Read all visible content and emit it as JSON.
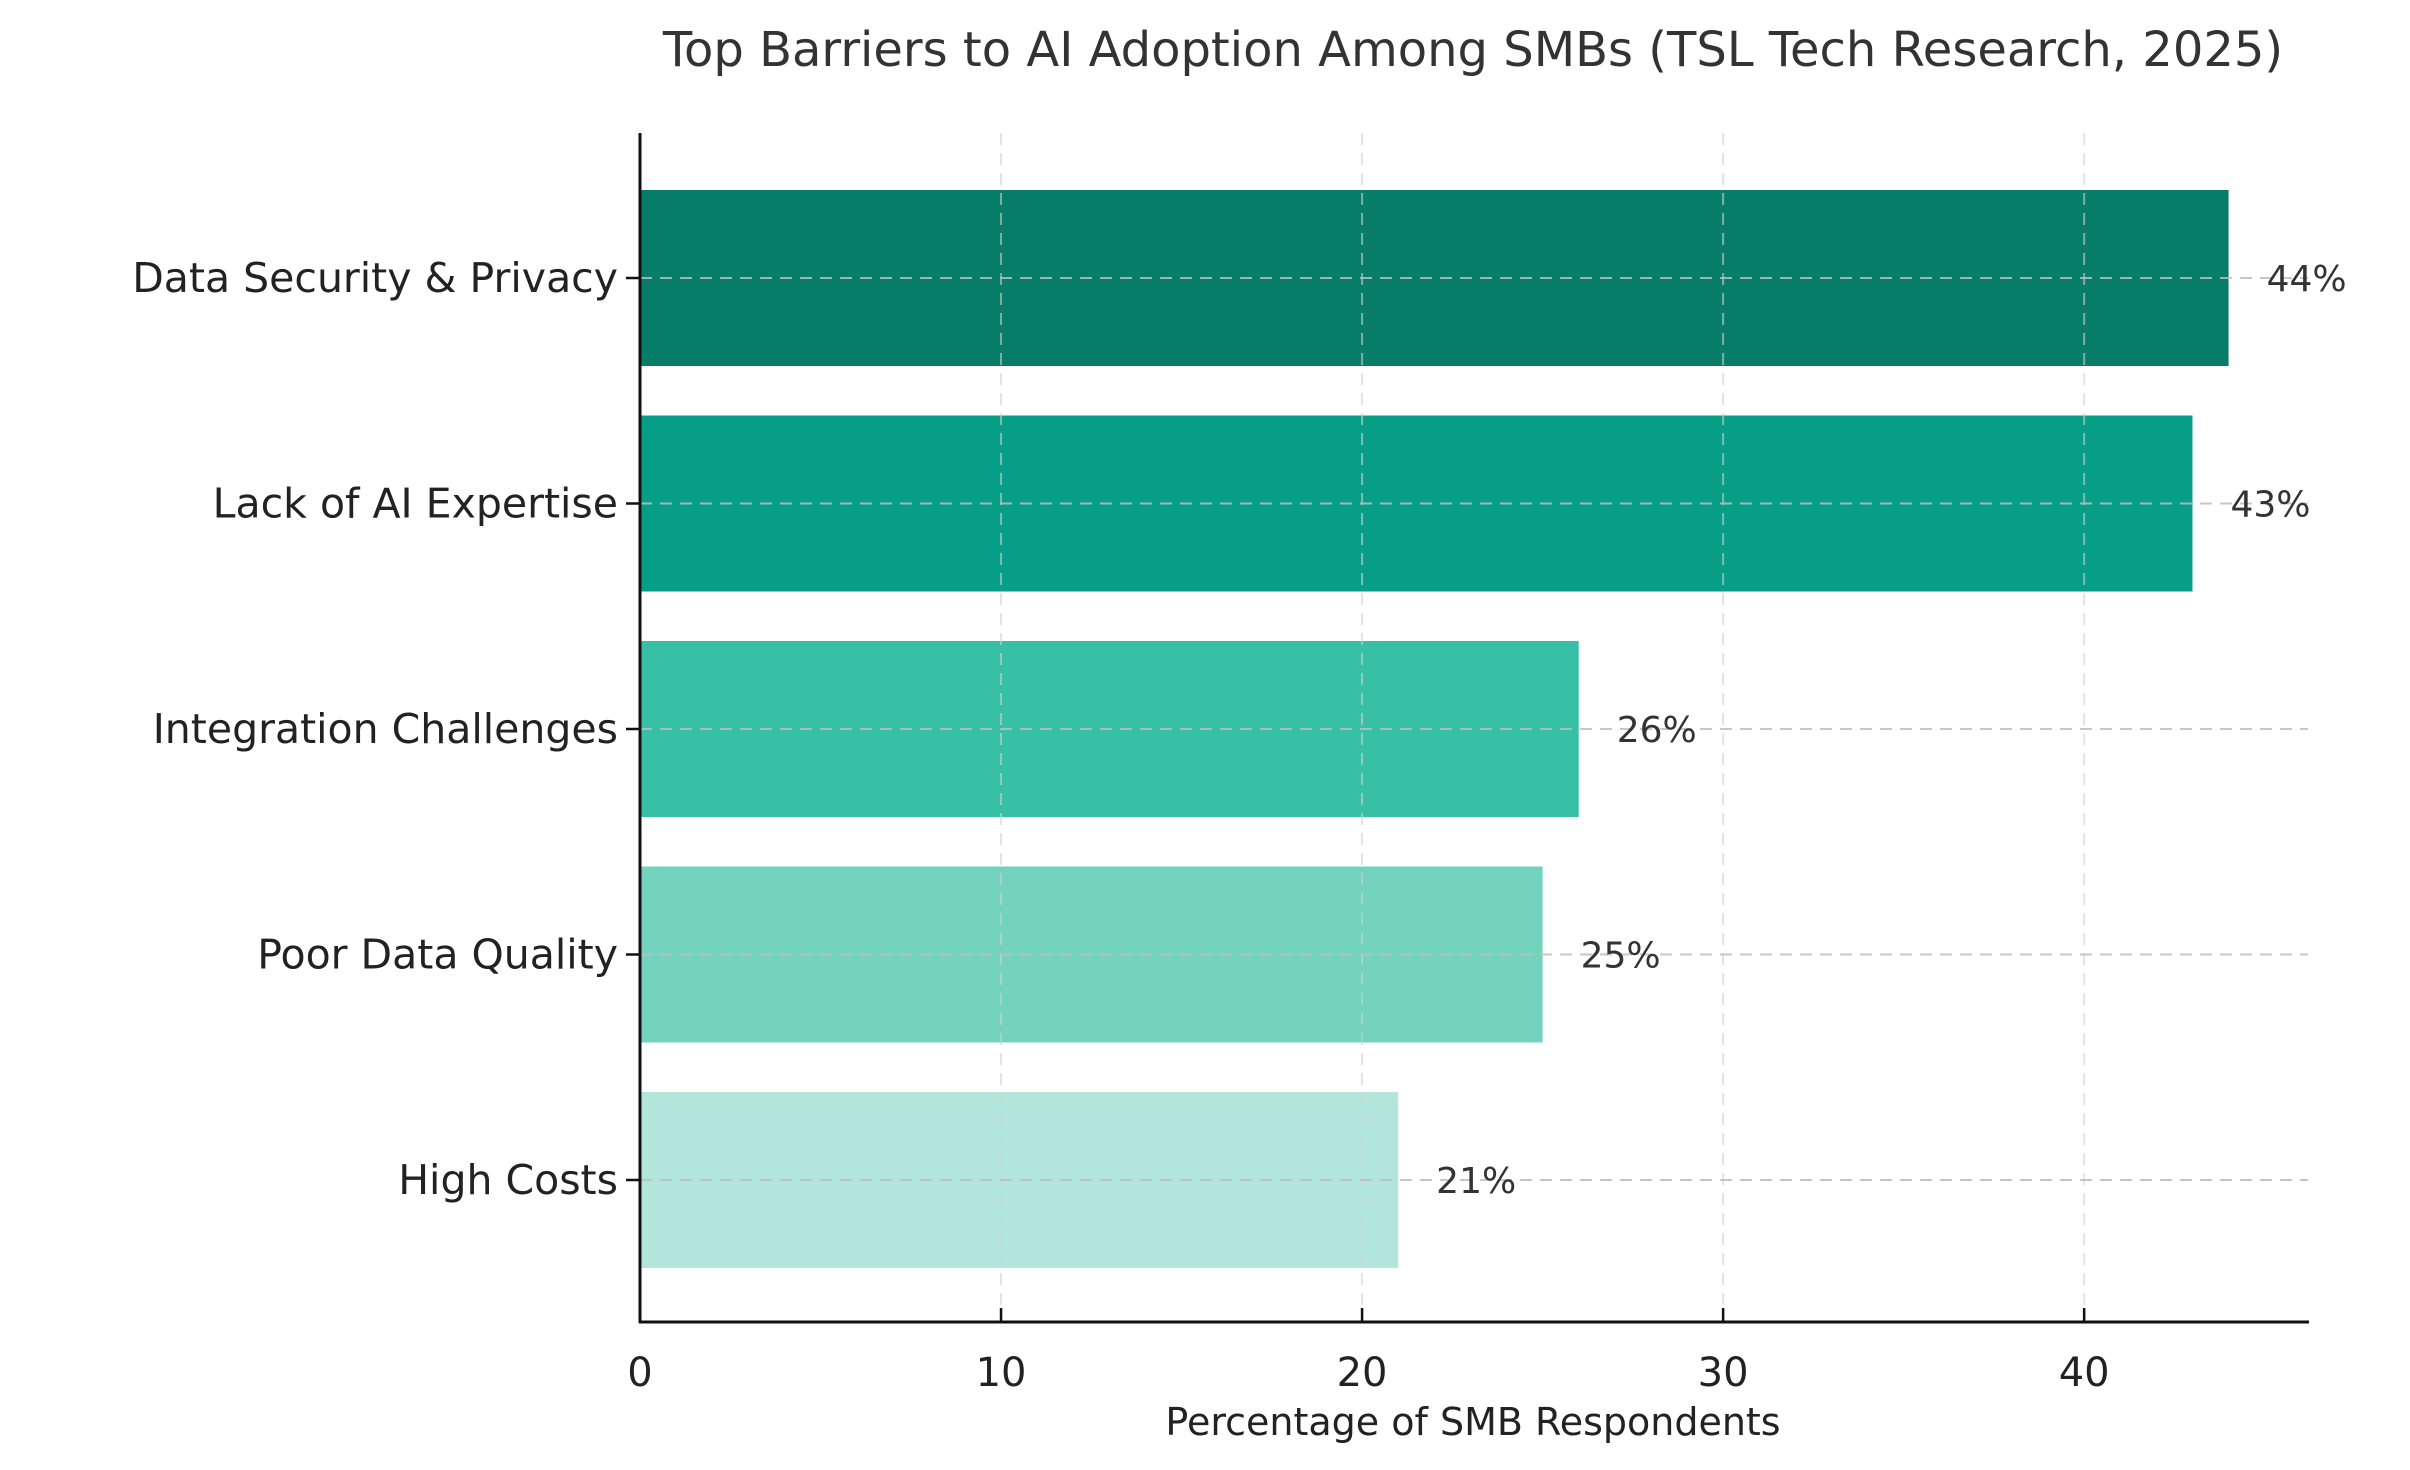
{
  "chart_data": {
    "type": "bar",
    "orientation": "horizontal",
    "title": "Top Barriers to AI Adoption Among SMBs (TSL Tech Research, 2025)",
    "xlabel": "Percentage of SMB Respondents",
    "ylabel": "",
    "categories": [
      "Data Security & Privacy",
      "Lack of AI Expertise",
      "Integration Challenges",
      "Poor Data Quality",
      "High Costs"
    ],
    "values": [
      44,
      43,
      26,
      25,
      21
    ],
    "data_labels": [
      "44%",
      "43%",
      "26%",
      "25%",
      "21%"
    ],
    "colors": [
      "#067c69",
      "#069e86",
      "#37c0a6",
      "#74d3bf",
      "#b2e6db"
    ],
    "xlim": [
      0,
      46.2
    ],
    "xticks": [
      0,
      10,
      20,
      30,
      40
    ],
    "xtick_labels": [
      "0",
      "10",
      "20",
      "30",
      "40"
    ],
    "grid": true,
    "grid_style": "dashed"
  }
}
